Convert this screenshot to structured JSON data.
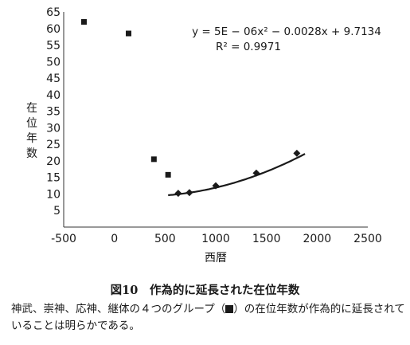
{
  "chart_data": {
    "type": "scatter",
    "xlabel": "西暦",
    "ylabel": "在位年数",
    "xlim": [
      -500,
      2500
    ],
    "ylim": [
      0,
      65
    ],
    "x_ticks": [
      -500,
      0,
      500,
      1000,
      1500,
      2000,
      2500
    ],
    "x_tick_labels": [
      "-500",
      "0",
      "500",
      "1000",
      "1500",
      "2000",
      "2500"
    ],
    "y_ticks": [
      5,
      10,
      15,
      20,
      25,
      30,
      35,
      40,
      45,
      50,
      55,
      60,
      65
    ],
    "y_tick_labels": [
      "5",
      "10",
      "15",
      "20",
      "25",
      "30",
      "35",
      "40",
      "45",
      "50",
      "55",
      "60",
      "65"
    ],
    "grid": false,
    "series": [
      {
        "marker": "square",
        "points": [
          {
            "x": -300,
            "y": 62
          },
          {
            "x": 140,
            "y": 58.5
          },
          {
            "x": 390,
            "y": 20.5
          },
          {
            "x": 530,
            "y": 15.8
          }
        ]
      },
      {
        "marker": "diamond",
        "points": [
          {
            "x": 630,
            "y": 10.2
          },
          {
            "x": 740,
            "y": 10.4
          },
          {
            "x": 1000,
            "y": 12.5
          },
          {
            "x": 1400,
            "y": 16.3
          },
          {
            "x": 1800,
            "y": 22.3
          }
        ]
      }
    ],
    "trendline": {
      "coefficients": [
        5e-06,
        -0.0028,
        9.7134
      ],
      "x_range": [
        530,
        1880
      ]
    },
    "equation_text": "y = 5E − 06x² − 0.0028x + 9.7134",
    "r2_text": "R² = 0.9971"
  },
  "caption": {
    "title": "図10　作為的に延長された在位年数",
    "body_before": "神武、崇神、応神、継体の４つのグループ（",
    "body_after": "）の在位年数が作為的に延長されていることは明らかである。"
  }
}
